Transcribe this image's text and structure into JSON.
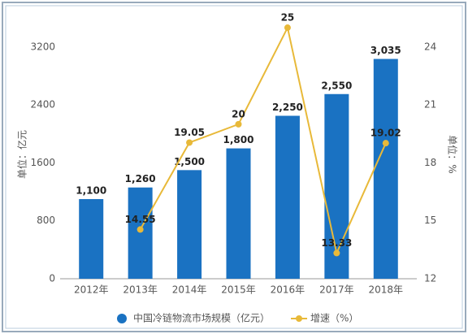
{
  "chart_data": {
    "type": "bar-line",
    "categories": [
      "2012年",
      "2013年",
      "2014年",
      "2015年",
      "2016年",
      "2017年",
      "2018年"
    ],
    "series": [
      {
        "name": "中国冷链物流市场规模（亿元）",
        "color": "#1a72c2",
        "type": "bar",
        "values": [
          1100,
          1260,
          1500,
          1800,
          2250,
          2550,
          3035
        ],
        "value_labels": [
          "1,100",
          "1,260",
          "1,500",
          "1,800",
          "2,250",
          "2,550",
          "3,035"
        ]
      },
      {
        "name": "增速（%）",
        "color": "#e8b939",
        "type": "line",
        "axis": "y2",
        "values": [
          null,
          14.55,
          19.05,
          20,
          25,
          13.33,
          19.02
        ]
      }
    ],
    "ylabel": "单位：亿元",
    "y2label": "单位：%",
    "ylim": [
      0,
      3400
    ],
    "yticks": [
      0,
      800,
      1600,
      2400,
      3200
    ],
    "y2lim": [
      12,
      24.75
    ],
    "y2ticks": [
      12,
      15,
      18,
      21,
      24
    ],
    "legend": "bottom"
  }
}
